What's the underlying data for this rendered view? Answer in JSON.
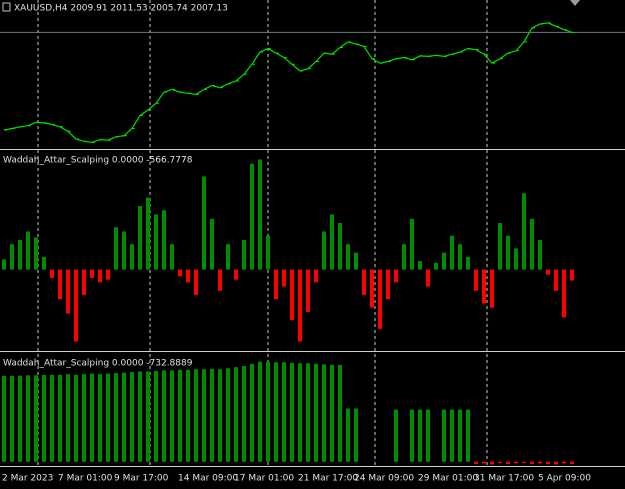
{
  "chart_data": [
    {
      "type": "line",
      "title": "XAUUSD,H4  2009.91 2011.53 2005.74 2007.13",
      "color": "#00e000",
      "ylim": [
        1800,
        2040
      ],
      "values": [
        1832,
        1835,
        1838,
        1840,
        1846,
        1845,
        1842,
        1838,
        1830,
        1816,
        1812,
        1810,
        1815,
        1814,
        1820,
        1822,
        1835,
        1858,
        1868,
        1880,
        1900,
        1905,
        1900,
        1898,
        1896,
        1905,
        1912,
        1908,
        1915,
        1920,
        1932,
        1950,
        1972,
        1978,
        1970,
        1962,
        1950,
        1938,
        1942,
        1955,
        1970,
        1968,
        1980,
        1990,
        1986,
        1982,
        1960,
        1952,
        1955,
        1960,
        1962,
        1958,
        1965,
        1964,
        1966,
        1964,
        1968,
        1972,
        1978,
        1976,
        1968,
        1952,
        1960,
        1970,
        1974,
        1990,
        2015,
        2022,
        2024,
        2018,
        2012,
        2007
      ]
    },
    {
      "type": "bar",
      "title": "Waddah_Attar_Scalping 0.0000 -566.7778",
      "up_color": "#008c00",
      "down_color": "#ff0000",
      "ylim": [
        -950,
        1400
      ],
      "values": [
        120,
        300,
        350,
        450,
        380,
        150,
        -100,
        -350,
        -520,
        -850,
        -300,
        -100,
        -150,
        -120,
        500,
        450,
        300,
        750,
        850,
        650,
        700,
        300,
        -80,
        -150,
        -300,
        1100,
        600,
        -250,
        300,
        -120,
        350,
        1250,
        1300,
        400,
        -350,
        -200,
        -600,
        -850,
        -500,
        -150,
        450,
        650,
        550,
        300,
        200,
        -300,
        -450,
        -700,
        -350,
        -150,
        300,
        600,
        100,
        -200,
        80,
        200,
        400,
        300,
        150,
        -250,
        -400,
        -450,
        550,
        400,
        250,
        900,
        600,
        350,
        -60,
        -250,
        -566,
        -130
      ]
    },
    {
      "type": "bar",
      "title": "Waddah_Attar_Scalping 0.0000 -732.8889",
      "up_color": "#008c00",
      "down_color": "#ff0000",
      "ylim": [
        -30,
        1000
      ],
      "values": [
        790,
        790,
        792,
        795,
        795,
        798,
        800,
        800,
        805,
        800,
        805,
        810,
        805,
        810,
        815,
        820,
        825,
        830,
        830,
        835,
        840,
        840,
        845,
        845,
        850,
        850,
        855,
        850,
        860,
        870,
        880,
        900,
        920,
        920,
        915,
        915,
        910,
        905,
        905,
        900,
        895,
        890,
        890,
        490,
        490,
        0,
        0,
        0,
        0,
        480,
        0,
        480,
        480,
        480,
        0,
        480,
        480,
        480,
        480,
        -20,
        -15,
        -25,
        -10,
        -20,
        -15,
        -10,
        -20,
        -15,
        -20,
        -25,
        -15,
        -20
      ],
      "categories": [
        "2 Mar 2023",
        null,
        null,
        null,
        null,
        null,
        null,
        "7 Mar 01:00",
        null,
        null,
        null,
        null,
        null,
        null,
        "9 Mar 17:00",
        null,
        null,
        null,
        null,
        null,
        null,
        null,
        "14 Mar 09:00",
        null,
        null,
        null,
        null,
        null,
        null,
        "17 Mar 01:00",
        null,
        null,
        null,
        null,
        null,
        null,
        null,
        "21 Mar 17:00",
        null,
        null,
        null,
        null,
        null,
        null,
        "24 Mar 09:00",
        null,
        null,
        null,
        null,
        null,
        null,
        null,
        "29 Mar 01:00",
        null,
        null,
        null,
        null,
        null,
        null,
        "31 Mar 17:00",
        null,
        null,
        null,
        null,
        null,
        null,
        null,
        "5 Apr 09:00",
        null,
        null,
        null,
        null
      ]
    }
  ]
}
